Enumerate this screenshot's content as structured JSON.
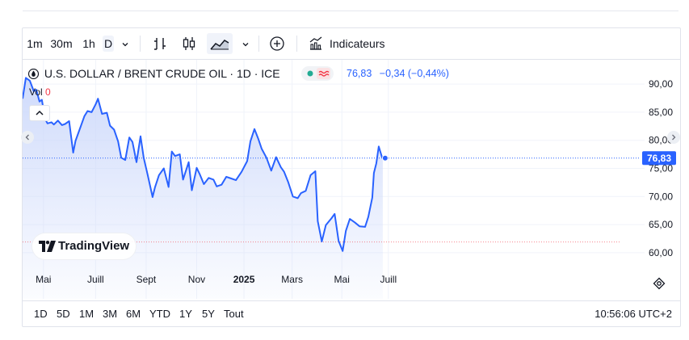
{
  "toolbar": {
    "intervals": [
      "1m",
      "30m",
      "1h",
      "D"
    ],
    "selected_interval": "D",
    "indicators_label": "Indicateurs",
    "icons": [
      "chevron-down-icon",
      "bar-chart-icon",
      "candlestick-icon",
      "area-chart-icon",
      "chevron-down-icon",
      "add-circle-icon",
      "indicators-icon"
    ]
  },
  "legend": {
    "symbol": "U.S. DOLLAR / BRENT CRUDE OIL · 1D · ICE",
    "last": "76,83",
    "change": "−0,34",
    "change_pct": "(−0,44%)",
    "volume_label": "Vol",
    "volume_value": "0"
  },
  "logo": {
    "text": "TradingView"
  },
  "range_buttons": [
    "1D",
    "5D",
    "1M",
    "3M",
    "6M",
    "YTD",
    "1Y",
    "5Y",
    "Tout"
  ],
  "clock": "10:56:06 UTC+2",
  "colors": {
    "line": "#2962ff",
    "area_top": "#cdd9fb",
    "price_badge": "#2962ff",
    "legend_text": "#2962ff",
    "dot_green": "#22ab94",
    "wave_red": "#f23645",
    "grid": "#f0f3fa"
  },
  "chart_data": {
    "type": "area",
    "title": "U.S. DOLLAR / BRENT CRUDE OIL · 1D · ICE",
    "xlabel": "",
    "ylabel": "",
    "x_ticks": [
      "Mai",
      "Juill",
      "Sept",
      "Nov",
      "2025",
      "Mars",
      "Mai",
      "Juill"
    ],
    "y_ticks": [
      "90,00",
      "85,00",
      "80,00",
      "75,00",
      "70,00",
      "65,00",
      "60,00"
    ],
    "ylim": [
      57.5,
      92.5
    ],
    "xlim": [
      "2024-04-01",
      "2025-07-18"
    ],
    "grid": true,
    "last_price": 76.83,
    "last_price_label": "76,83",
    "reference_price": 61.9,
    "series": [
      {
        "values": [
          {
            "x": "2024-04-01",
            "y": 87.4
          },
          {
            "x": "2024-04-05",
            "y": 91.1
          },
          {
            "x": "2024-04-10",
            "y": 90.6
          },
          {
            "x": "2024-04-15",
            "y": 88.7
          },
          {
            "x": "2024-04-18",
            "y": 89.0
          },
          {
            "x": "2024-04-22",
            "y": 86.9
          },
          {
            "x": "2024-04-25",
            "y": 87.2
          },
          {
            "x": "2024-04-29",
            "y": 83.8
          },
          {
            "x": "2024-05-02",
            "y": 83.0
          },
          {
            "x": "2024-05-07",
            "y": 83.2
          },
          {
            "x": "2024-05-10",
            "y": 82.8
          },
          {
            "x": "2024-05-15",
            "y": 83.5
          },
          {
            "x": "2024-05-20",
            "y": 82.7
          },
          {
            "x": "2024-05-24",
            "y": 82.9
          },
          {
            "x": "2024-05-29",
            "y": 83.4
          },
          {
            "x": "2024-06-03",
            "y": 77.8
          },
          {
            "x": "2024-06-06",
            "y": 79.9
          },
          {
            "x": "2024-06-11",
            "y": 81.9
          },
          {
            "x": "2024-06-17",
            "y": 84.3
          },
          {
            "x": "2024-06-21",
            "y": 85.2
          },
          {
            "x": "2024-06-26",
            "y": 85.0
          },
          {
            "x": "2024-07-01",
            "y": 86.4
          },
          {
            "x": "2024-07-04",
            "y": 87.4
          },
          {
            "x": "2024-07-09",
            "y": 84.7
          },
          {
            "x": "2024-07-15",
            "y": 84.9
          },
          {
            "x": "2024-07-19",
            "y": 82.6
          },
          {
            "x": "2024-07-24",
            "y": 81.9
          },
          {
            "x": "2024-07-29",
            "y": 79.8
          },
          {
            "x": "2024-08-02",
            "y": 76.9
          },
          {
            "x": "2024-08-07",
            "y": 76.5
          },
          {
            "x": "2024-08-12",
            "y": 80.5
          },
          {
            "x": "2024-08-16",
            "y": 79.7
          },
          {
            "x": "2024-08-21",
            "y": 76.1
          },
          {
            "x": "2024-08-26",
            "y": 80.7
          },
          {
            "x": "2024-08-30",
            "y": 76.9
          },
          {
            "x": "2024-09-04",
            "y": 73.8
          },
          {
            "x": "2024-09-10",
            "y": 69.9
          },
          {
            "x": "2024-09-13",
            "y": 71.6
          },
          {
            "x": "2024-09-18",
            "y": 73.8
          },
          {
            "x": "2024-09-24",
            "y": 75.0
          },
          {
            "x": "2024-09-30",
            "y": 71.7
          },
          {
            "x": "2024-10-04",
            "y": 78.0
          },
          {
            "x": "2024-10-08",
            "y": 77.2
          },
          {
            "x": "2024-10-14",
            "y": 77.5
          },
          {
            "x": "2024-10-18",
            "y": 73.0
          },
          {
            "x": "2024-10-25",
            "y": 76.1
          },
          {
            "x": "2024-10-29",
            "y": 71.1
          },
          {
            "x": "2024-11-04",
            "y": 75.1
          },
          {
            "x": "2024-11-08",
            "y": 73.9
          },
          {
            "x": "2024-11-13",
            "y": 72.2
          },
          {
            "x": "2024-11-19",
            "y": 73.3
          },
          {
            "x": "2024-11-25",
            "y": 73.0
          },
          {
            "x": "2024-11-29",
            "y": 71.8
          },
          {
            "x": "2024-12-05",
            "y": 72.1
          },
          {
            "x": "2024-12-11",
            "y": 73.5
          },
          {
            "x": "2024-12-17",
            "y": 73.2
          },
          {
            "x": "2024-12-23",
            "y": 72.9
          },
          {
            "x": "2024-12-30",
            "y": 74.4
          },
          {
            "x": "2025-01-06",
            "y": 76.3
          },
          {
            "x": "2025-01-10",
            "y": 79.8
          },
          {
            "x": "2025-01-15",
            "y": 82.0
          },
          {
            "x": "2025-01-20",
            "y": 80.2
          },
          {
            "x": "2025-01-24",
            "y": 78.5
          },
          {
            "x": "2025-01-30",
            "y": 76.9
          },
          {
            "x": "2025-02-05",
            "y": 74.6
          },
          {
            "x": "2025-02-11",
            "y": 77.0
          },
          {
            "x": "2025-02-17",
            "y": 75.2
          },
          {
            "x": "2025-02-21",
            "y": 74.4
          },
          {
            "x": "2025-02-26",
            "y": 72.6
          },
          {
            "x": "2025-03-04",
            "y": 70.0
          },
          {
            "x": "2025-03-10",
            "y": 69.7
          },
          {
            "x": "2025-03-14",
            "y": 70.6
          },
          {
            "x": "2025-03-20",
            "y": 71.0
          },
          {
            "x": "2025-03-26",
            "y": 73.8
          },
          {
            "x": "2025-04-01",
            "y": 74.5
          },
          {
            "x": "2025-04-04",
            "y": 65.6
          },
          {
            "x": "2025-04-09",
            "y": 62.0
          },
          {
            "x": "2025-04-14",
            "y": 64.9
          },
          {
            "x": "2025-04-21",
            "y": 66.1
          },
          {
            "x": "2025-04-25",
            "y": 66.9
          },
          {
            "x": "2025-04-30",
            "y": 62.1
          },
          {
            "x": "2025-05-05",
            "y": 60.3
          },
          {
            "x": "2025-05-09",
            "y": 63.9
          },
          {
            "x": "2025-05-14",
            "y": 66.0
          },
          {
            "x": "2025-05-20",
            "y": 65.4
          },
          {
            "x": "2025-05-26",
            "y": 64.7
          },
          {
            "x": "2025-06-02",
            "y": 64.6
          },
          {
            "x": "2025-06-06",
            "y": 66.4
          },
          {
            "x": "2025-06-11",
            "y": 69.8
          },
          {
            "x": "2025-06-13",
            "y": 74.2
          },
          {
            "x": "2025-06-16",
            "y": 75.9
          },
          {
            "x": "2025-06-19",
            "y": 78.9
          },
          {
            "x": "2025-06-23",
            "y": 77.0
          },
          {
            "x": "2025-06-24",
            "y": 76.83
          }
        ]
      }
    ]
  }
}
